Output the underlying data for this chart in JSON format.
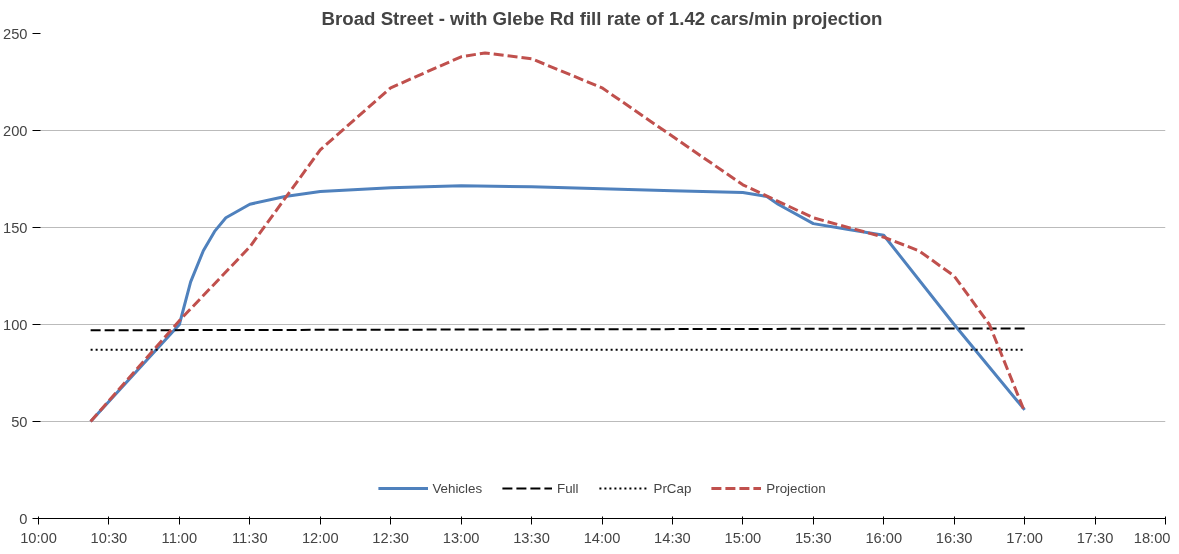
{
  "chart_data": {
    "type": "line",
    "title": "Broad Street - with Glebe Rd fill rate of 1.42 cars/min projection",
    "xlim": [
      10,
      18
    ],
    "xticks": [
      {
        "value": 10,
        "label": "10:00"
      },
      {
        "value": 10.5,
        "label": "10:30"
      },
      {
        "value": 11,
        "label": "11:00"
      },
      {
        "value": 11.5,
        "label": "11:30"
      },
      {
        "value": 12,
        "label": "12:00"
      },
      {
        "value": 12.5,
        "label": "12:30"
      },
      {
        "value": 13,
        "label": "13:00"
      },
      {
        "value": 13.5,
        "label": "13:30"
      },
      {
        "value": 14,
        "label": "14:00"
      },
      {
        "value": 14.5,
        "label": "14:30"
      },
      {
        "value": 15,
        "label": "15:00"
      },
      {
        "value": 15.5,
        "label": "15:30"
      },
      {
        "value": 16,
        "label": "16:00"
      },
      {
        "value": 16.5,
        "label": "16:30"
      },
      {
        "value": 17,
        "label": "17:00"
      },
      {
        "value": 17.5,
        "label": "17:30"
      },
      {
        "value": 18,
        "label": "18:00"
      }
    ],
    "ylim": [
      0,
      250
    ],
    "yticks": [
      0,
      50,
      100,
      150,
      200,
      250
    ],
    "grid": "y",
    "legend": "bottom",
    "series": [
      {
        "name": "Vehicles",
        "color": "#4f81bd",
        "line_style": "solid",
        "x": [
          10.37,
          11,
          11.08,
          11.17,
          11.25,
          11.33,
          11.5,
          11.75,
          12,
          12.5,
          13,
          13.5,
          14,
          14.5,
          15,
          15.17,
          15.25,
          15.5,
          15.75,
          16,
          16.5,
          17
        ],
        "values": [
          50,
          100,
          122,
          138,
          148,
          155,
          162,
          166,
          168.5,
          170.5,
          171.5,
          171,
          170,
          169,
          168,
          166,
          162,
          152,
          149,
          146,
          100,
          56
        ]
      },
      {
        "name": "Full",
        "color": "#000000",
        "line_style": "dashed",
        "x": [
          10.37,
          17
        ],
        "values": [
          97,
          98
        ]
      },
      {
        "name": "PrCap",
        "color": "#000000",
        "line_style": "dotted",
        "x": [
          10.37,
          17
        ],
        "values": [
          87,
          87
        ]
      },
      {
        "name": "Projection",
        "color": "#c0504d",
        "line_style": "dashed",
        "x": [
          10.37,
          11,
          11.5,
          12,
          12.5,
          13,
          13.17,
          13.5,
          14,
          14.5,
          15,
          15.5,
          16,
          16.25,
          16.5,
          16.75,
          17
        ],
        "values": [
          50,
          102,
          140,
          190,
          222,
          238,
          240,
          237,
          222,
          197,
          172,
          155,
          145,
          138,
          125,
          100,
          55
        ]
      }
    ]
  }
}
